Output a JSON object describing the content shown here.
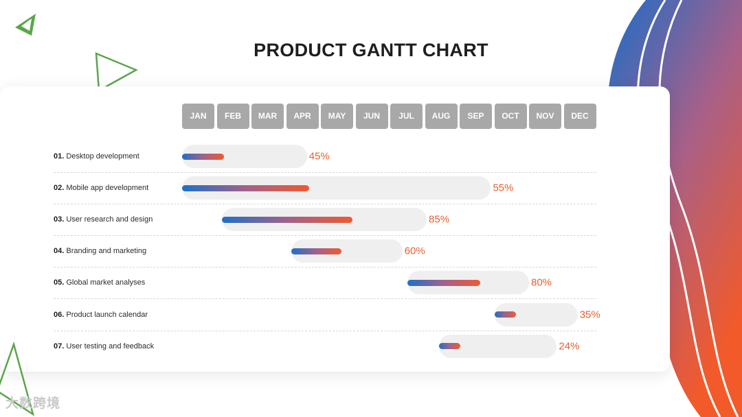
{
  "title": "PRODUCT GANTT CHART",
  "months": [
    "JAN",
    "FEB",
    "MAR",
    "APR",
    "MAY",
    "JUN",
    "JUL",
    "AUG",
    "SEP",
    "OCT",
    "NOV",
    "DEC"
  ],
  "colors": {
    "month_box": "#a8a8a8",
    "gradient_start": "#1f6fc6",
    "gradient_end": "#f05a30",
    "percent_text": "#e8602e",
    "deco_triangle": "#5aa64a"
  },
  "tasks": [
    {
      "num": "01.",
      "label": "Desktop development",
      "start": 0,
      "end": 3.6,
      "progress": 45,
      "percent": "45%"
    },
    {
      "num": "02.",
      "label": "Mobile app development",
      "start": 0,
      "end": 8.9,
      "progress": 55,
      "percent": "55%"
    },
    {
      "num": "03.",
      "label": "User research and design",
      "start": 1.15,
      "end": 7.05,
      "progress": 85,
      "percent": "85%"
    },
    {
      "num": "04.",
      "label": "Branding and marketing",
      "start": 3.15,
      "end": 6.35,
      "progress": 60,
      "percent": "60%"
    },
    {
      "num": "05.",
      "label": "Global market analyses",
      "start": 6.5,
      "end": 10.0,
      "progress": 80,
      "percent": "80%"
    },
    {
      "num": "06.",
      "label": "Product launch calendar",
      "start": 9.0,
      "end": 11.4,
      "progress": 35,
      "percent": "35%"
    },
    {
      "num": "07.",
      "label": "User testing and feedback",
      "start": 7.4,
      "end": 10.8,
      "progress": 24,
      "percent": "24%"
    }
  ],
  "chart_data": {
    "type": "gantt",
    "title": "PRODUCT GANTT CHART",
    "categories": [
      "Desktop development",
      "Mobile app development",
      "User research and design",
      "Branding and marketing",
      "Global market analyses",
      "Product launch calendar",
      "User testing and feedback"
    ],
    "x_ticks": [
      "JAN",
      "FEB",
      "MAR",
      "APR",
      "MAY",
      "JUN",
      "JUL",
      "AUG",
      "SEP",
      "OCT",
      "NOV",
      "DEC"
    ],
    "start_month": [
      0,
      0,
      1.15,
      3.15,
      6.5,
      9.0,
      7.4
    ],
    "end_month": [
      3.6,
      8.9,
      7.05,
      6.35,
      10.0,
      11.4,
      10.8
    ],
    "progress_percent": [
      45,
      55,
      85,
      60,
      80,
      35,
      24
    ]
  },
  "watermark": "大数跨境"
}
